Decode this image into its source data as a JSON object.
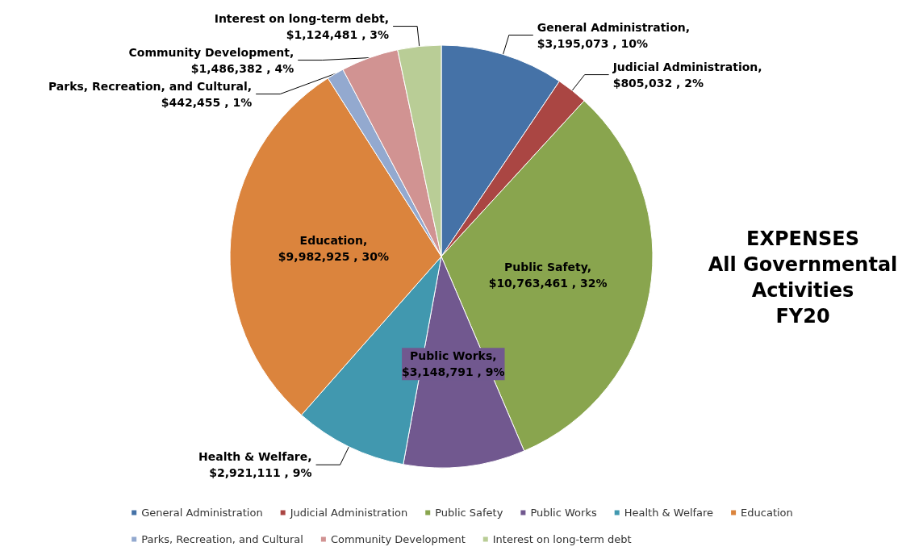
{
  "chart_data": {
    "type": "pie",
    "title": "EXPENSES\nAll Governmental\nActivities\nFY20",
    "categories": [
      "General Administration",
      "Judicial Administration",
      "Public Safety",
      "Public Works",
      "Health & Welfare",
      "Education",
      "Parks, Recreation, and Cultural",
      "Community Development",
      "Interest on long-term debt"
    ],
    "values": [
      3195073,
      805032,
      10763461,
      3148791,
      2921111,
      9982925,
      442455,
      1486382,
      1124481
    ],
    "colors": [
      "#4572a7",
      "#aa4643",
      "#89a54e",
      "#71588f",
      "#4198af",
      "#db843d",
      "#93a9cf",
      "#d19392",
      "#b9cd96"
    ],
    "value_labels": [
      "General Administration, $3,195,073 , 10%",
      "Judicial Administration, $805,032 , 2%",
      "Public Safety, $10,763,461 , 32%",
      "Public Works, $3,148,791 , 9%",
      "Health & Welfare, $2,921,111 , 9%",
      "Education, $9,982,925 , 30%",
      "Parks, Recreation, and Cultural, $442,455 , 1%",
      "Community Development, $1,486,382 , 4%",
      "Interest on long-term debt, $1,124,481 , 3%"
    ],
    "legend": "bottom"
  }
}
